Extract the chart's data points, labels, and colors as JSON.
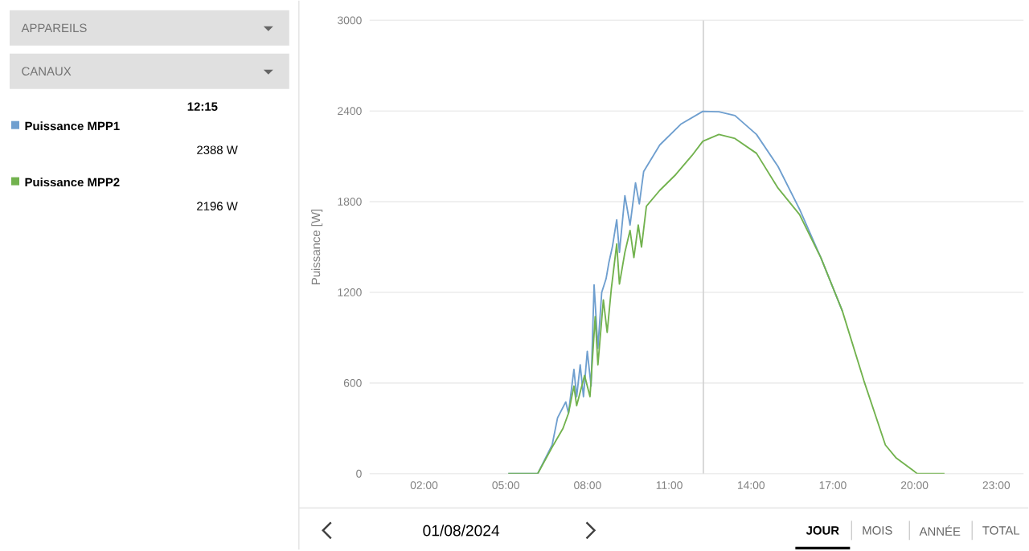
{
  "chart_data": {
    "type": "line",
    "ylabel": "Puissance [W]",
    "xlim": [
      0,
      24
    ],
    "ylim": [
      0,
      3000
    ],
    "xticks": [
      {
        "value": 2,
        "label": "02:00"
      },
      {
        "value": 5,
        "label": "05:00"
      },
      {
        "value": 8,
        "label": "08:00"
      },
      {
        "value": 11,
        "label": "11:00"
      },
      {
        "value": 14,
        "label": "14:00"
      },
      {
        "value": 17,
        "label": "17:00"
      },
      {
        "value": 20,
        "label": "20:00"
      },
      {
        "value": 23,
        "label": "23:00"
      }
    ],
    "yticks": [
      0,
      600,
      1200,
      1800,
      2400,
      3000
    ],
    "grid": "y",
    "legend": "left",
    "ref_lines": [
      {
        "axis": "x",
        "value": 12.25,
        "color": "#d0d0d0"
      }
    ],
    "series": [
      {
        "name": "Puissance MPP1",
        "color": "#6f9fcf",
        "x": [
          5.09,
          6.17,
          6.7,
          6.9,
          7.2,
          7.3,
          7.5,
          7.6,
          7.73,
          7.85,
          7.99,
          8.13,
          8.24,
          8.38,
          8.52,
          8.68,
          8.78,
          8.91,
          9.07,
          9.17,
          9.37,
          9.56,
          9.76,
          9.9,
          10.06,
          10.65,
          11.44,
          12.23,
          12.82,
          13.41,
          14.2,
          14.99,
          15.78,
          16.56,
          17.35
        ],
        "values": [
          0,
          0,
          190,
          370,
          475,
          400,
          690,
          510,
          720,
          510,
          810,
          580,
          1250,
          830,
          1200,
          1290,
          1395,
          1500,
          1680,
          1465,
          1840,
          1645,
          1925,
          1785,
          2000,
          2175,
          2315,
          2398,
          2395,
          2370,
          2245,
          2033,
          1750,
          1430,
          1077
        ]
      },
      {
        "name": "Puissance MPP2",
        "color": "#72b24e",
        "x": [
          5.09,
          6.17,
          6.7,
          7.1,
          7.3,
          7.5,
          7.6,
          7.89,
          8.09,
          8.28,
          8.38,
          8.58,
          8.72,
          8.87,
          9.07,
          9.17,
          9.37,
          9.56,
          9.7,
          9.86,
          9.98,
          10.16,
          10.65,
          11.24,
          11.83,
          12.23,
          12.82,
          13.41,
          14.2,
          14.99,
          15.78,
          16.56,
          17.35,
          18.14,
          18.93,
          19.33,
          20.0,
          20.1,
          21.1
        ],
        "values": [
          0,
          0,
          175,
          300,
          400,
          580,
          450,
          650,
          510,
          1040,
          720,
          1150,
          935,
          1220,
          1520,
          1255,
          1465,
          1610,
          1430,
          1645,
          1500,
          1770,
          1875,
          1980,
          2105,
          2200,
          2245,
          2218,
          2120,
          1890,
          1715,
          1430,
          1077,
          616,
          190,
          103,
          14,
          0,
          0
        ]
      }
    ],
    "annotations": [
      "APPAREILS",
      "CANAUX",
      "12:15",
      "2388 W",
      "2196 W",
      "01/08/2024",
      "JOUR",
      "MOIS",
      "ANNÉE",
      "TOTAL"
    ]
  }
}
